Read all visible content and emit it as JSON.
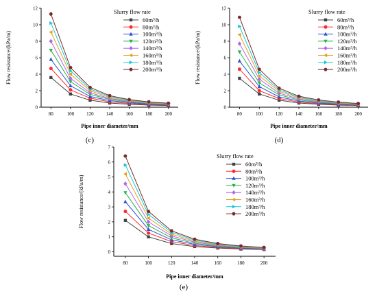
{
  "chart_data": [
    {
      "panel": "(c)",
      "type": "line",
      "xlabel": "Pipe inner diameter/mm",
      "ylabel": "Flow resistance/(kPa/m)",
      "x": [
        80,
        100,
        120,
        140,
        160,
        180,
        200
      ],
      "xlim": [
        70,
        210
      ],
      "ylim": [
        0,
        12
      ],
      "yticks": [
        0,
        2,
        4,
        6,
        8,
        10,
        12
      ],
      "xticks": [
        80,
        100,
        120,
        140,
        160,
        180,
        200
      ],
      "legend_title": "Slurry flow rate",
      "legend_position": "top-right",
      "series": [
        {
          "name": "60m³/h",
          "values": [
            3.6,
            1.6,
            0.85,
            0.5,
            0.35,
            0.25,
            0.2
          ]
        },
        {
          "name": "80m³/h",
          "values": [
            4.7,
            2.1,
            1.1,
            0.65,
            0.45,
            0.32,
            0.25
          ]
        },
        {
          "name": "100m³/h",
          "values": [
            5.8,
            2.6,
            1.3,
            0.8,
            0.55,
            0.38,
            0.3
          ]
        },
        {
          "name": "120m³/h",
          "values": [
            6.9,
            3.1,
            1.55,
            0.95,
            0.62,
            0.45,
            0.33
          ]
        },
        {
          "name": "140m³/h",
          "values": [
            8.0,
            3.5,
            1.75,
            1.05,
            0.7,
            0.5,
            0.36
          ]
        },
        {
          "name": "160m³/h",
          "values": [
            9.1,
            4.0,
            2.0,
            1.18,
            0.77,
            0.55,
            0.4
          ]
        },
        {
          "name": "180m³/h",
          "values": [
            10.2,
            4.4,
            2.2,
            1.3,
            0.85,
            0.6,
            0.44
          ]
        },
        {
          "name": "200m³/h",
          "values": [
            11.3,
            4.8,
            2.4,
            1.4,
            0.92,
            0.65,
            0.48
          ]
        }
      ]
    },
    {
      "panel": "(d)",
      "type": "line",
      "xlabel": "Pipe inner diameter/mm",
      "ylabel": "Flow resistance/(kPa/m)",
      "x": [
        80,
        100,
        120,
        140,
        160,
        180,
        200
      ],
      "xlim": [
        70,
        210
      ],
      "ylim": [
        0,
        12
      ],
      "yticks": [
        0,
        2,
        4,
        6,
        8,
        10,
        12
      ],
      "xticks": [
        80,
        100,
        120,
        140,
        160,
        180,
        200
      ],
      "legend_title": "Slurry flow rate",
      "legend_position": "top-right",
      "series": [
        {
          "name": "60m³/h",
          "values": [
            3.5,
            1.6,
            0.85,
            0.5,
            0.35,
            0.25,
            0.2
          ]
        },
        {
          "name": "80m³/h",
          "values": [
            4.6,
            2.0,
            1.05,
            0.62,
            0.42,
            0.3,
            0.24
          ]
        },
        {
          "name": "100m³/h",
          "values": [
            5.6,
            2.5,
            1.25,
            0.75,
            0.5,
            0.36,
            0.28
          ]
        },
        {
          "name": "120m³/h",
          "values": [
            6.7,
            2.95,
            1.5,
            0.88,
            0.58,
            0.42,
            0.31
          ]
        },
        {
          "name": "140m³/h",
          "values": [
            7.7,
            3.4,
            1.7,
            1.0,
            0.66,
            0.47,
            0.34
          ]
        },
        {
          "name": "160m³/h",
          "values": [
            8.8,
            3.8,
            1.92,
            1.12,
            0.74,
            0.52,
            0.38
          ]
        },
        {
          "name": "180m³/h",
          "values": [
            9.8,
            4.2,
            2.1,
            1.22,
            0.8,
            0.57,
            0.41
          ]
        },
        {
          "name": "200m³/h",
          "values": [
            10.9,
            4.6,
            2.3,
            1.33,
            0.88,
            0.62,
            0.45
          ]
        }
      ]
    },
    {
      "panel": "(e)",
      "type": "line",
      "xlabel": "Pipe inner diameter/mm",
      "ylabel": "Flow resistance/(kPa/m)",
      "x": [
        80,
        100,
        120,
        140,
        160,
        180,
        200
      ],
      "xlim": [
        70,
        210
      ],
      "ylim": [
        -0.3,
        7
      ],
      "yticks": [
        0,
        1,
        2,
        3,
        4,
        5,
        6,
        7
      ],
      "xticks": [
        80,
        100,
        120,
        140,
        160,
        180,
        200
      ],
      "legend_title": "Slurry flow rate",
      "legend_position": "top-right",
      "series": [
        {
          "name": "60m³/h",
          "values": [
            2.1,
            1.0,
            0.55,
            0.35,
            0.25,
            0.18,
            0.15
          ]
        },
        {
          "name": "80m³/h",
          "values": [
            2.7,
            1.25,
            0.68,
            0.42,
            0.29,
            0.21,
            0.17
          ]
        },
        {
          "name": "100m³/h",
          "values": [
            3.35,
            1.5,
            0.8,
            0.5,
            0.34,
            0.24,
            0.19
          ]
        },
        {
          "name": "120m³/h",
          "values": [
            3.95,
            1.75,
            0.93,
            0.57,
            0.38,
            0.27,
            0.21
          ]
        },
        {
          "name": "140m³/h",
          "values": [
            4.55,
            2.0,
            1.06,
            0.64,
            0.43,
            0.3,
            0.23
          ]
        },
        {
          "name": "160m³/h",
          "values": [
            5.2,
            2.25,
            1.18,
            0.71,
            0.47,
            0.33,
            0.25
          ]
        },
        {
          "name": "180m³/h",
          "values": [
            5.8,
            2.5,
            1.3,
            0.78,
            0.51,
            0.36,
            0.27
          ]
        },
        {
          "name": "200m³/h",
          "values": [
            6.4,
            2.7,
            1.4,
            0.84,
            0.55,
            0.39,
            0.29
          ]
        }
      ]
    }
  ],
  "series_styles": [
    {
      "color": "#404040",
      "marker": "square"
    },
    {
      "color": "#ff2a2a",
      "marker": "circle"
    },
    {
      "color": "#2a4fd6",
      "marker": "triangle-up"
    },
    {
      "color": "#2ab34a",
      "marker": "triangle-down"
    },
    {
      "color": "#b266e6",
      "marker": "diamond"
    },
    {
      "color": "#e6a019",
      "marker": "triangle-left"
    },
    {
      "color": "#19c8d6",
      "marker": "triangle-right"
    },
    {
      "color": "#7a2a2a",
      "marker": "hexagon"
    }
  ]
}
